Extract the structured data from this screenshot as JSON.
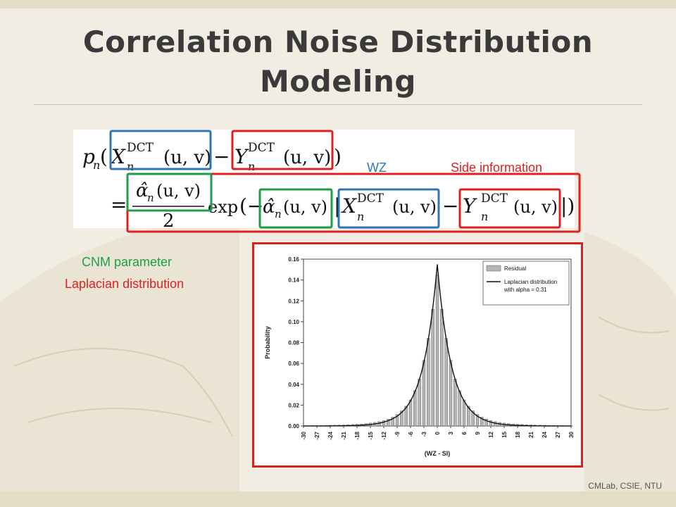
{
  "slide": {
    "title": "Correlation Noise Distribution Modeling",
    "footer": "CMLab, CSIE, NTU"
  },
  "annotations": {
    "wz": "WZ",
    "side_information": "Side information",
    "cnm_parameter": "CNM parameter",
    "laplacian_distribution": "Laplacian distribution"
  },
  "equation": {
    "lhs_p": "p",
    "sub_n": "n",
    "X": "X",
    "Y": "Y",
    "DCT": "DCT",
    "uv": "(u, v)",
    "minus": "−",
    "eq_sign": "=",
    "alpha": "α̂",
    "two": "2",
    "exp": "exp",
    "open_paren": "(",
    "close_paren": ")",
    "neg_open": "(−",
    "bar": "|",
    "close_abs": "|)"
  },
  "colors": {
    "blue_box": "#2e75b6",
    "red_box": "#e02020",
    "green_box": "#1e9e48"
  },
  "chart_data": {
    "type": "bar",
    "xlabel": "(WZ - SI)",
    "ylabel": "Probability",
    "ylim": [
      0,
      0.16
    ],
    "yticks": [
      "0.00",
      "0.02",
      "0.04",
      "0.06",
      "0.08",
      "0.10",
      "0.12",
      "0.14",
      "0.16"
    ],
    "xticks": [
      "-30",
      "-27",
      "-24",
      "-21",
      "-18",
      "-15",
      "-12",
      "-9",
      "-6",
      "-3",
      "0",
      "3",
      "6",
      "9",
      "12",
      "15",
      "18",
      "21",
      "24",
      "27",
      "30"
    ],
    "xlim": [
      -30,
      30
    ],
    "legend": {
      "position": "top-right",
      "entries": [
        {
          "label": "Residual",
          "kind": "bar"
        },
        {
          "label": "Laplacian distribution\nwith alpha = 0.31",
          "kind": "line"
        }
      ]
    },
    "series": [
      {
        "name": "Residual",
        "kind": "bar",
        "x": [
          -30,
          -29,
          -28,
          -27,
          -26,
          -25,
          -24,
          -23,
          -22,
          -21,
          -20,
          -19,
          -18,
          -17,
          -16,
          -15,
          -14,
          -13,
          -12,
          -11,
          -10,
          -9,
          -8,
          -7,
          -6,
          -5,
          -4,
          -3,
          -2,
          -1,
          0,
          1,
          2,
          3,
          4,
          5,
          6,
          7,
          8,
          9,
          10,
          11,
          12,
          13,
          14,
          15,
          16,
          17,
          18,
          19,
          20,
          21,
          22,
          23,
          24,
          25,
          26,
          27,
          28,
          29,
          30
        ],
        "values": [
          0.0003,
          0.0003,
          0.0004,
          0.0004,
          0.0005,
          0.0006,
          0.0007,
          0.0008,
          0.0009,
          0.001,
          0.0012,
          0.0014,
          0.0016,
          0.0019,
          0.0023,
          0.0028,
          0.0034,
          0.0042,
          0.0052,
          0.0066,
          0.0085,
          0.011,
          0.0145,
          0.019,
          0.025,
          0.034,
          0.045,
          0.063,
          0.084,
          0.112,
          0.145,
          0.112,
          0.084,
          0.063,
          0.045,
          0.034,
          0.025,
          0.019,
          0.0145,
          0.011,
          0.0085,
          0.0066,
          0.0052,
          0.0042,
          0.0034,
          0.0028,
          0.0023,
          0.0019,
          0.0016,
          0.0014,
          0.0012,
          0.001,
          0.0009,
          0.0008,
          0.0007,
          0.0006,
          0.0005,
          0.0004,
          0.0004,
          0.0003,
          0.0003
        ]
      },
      {
        "name": "Laplacian distribution with alpha = 0.31",
        "kind": "line",
        "alpha": 0.31
      }
    ]
  }
}
